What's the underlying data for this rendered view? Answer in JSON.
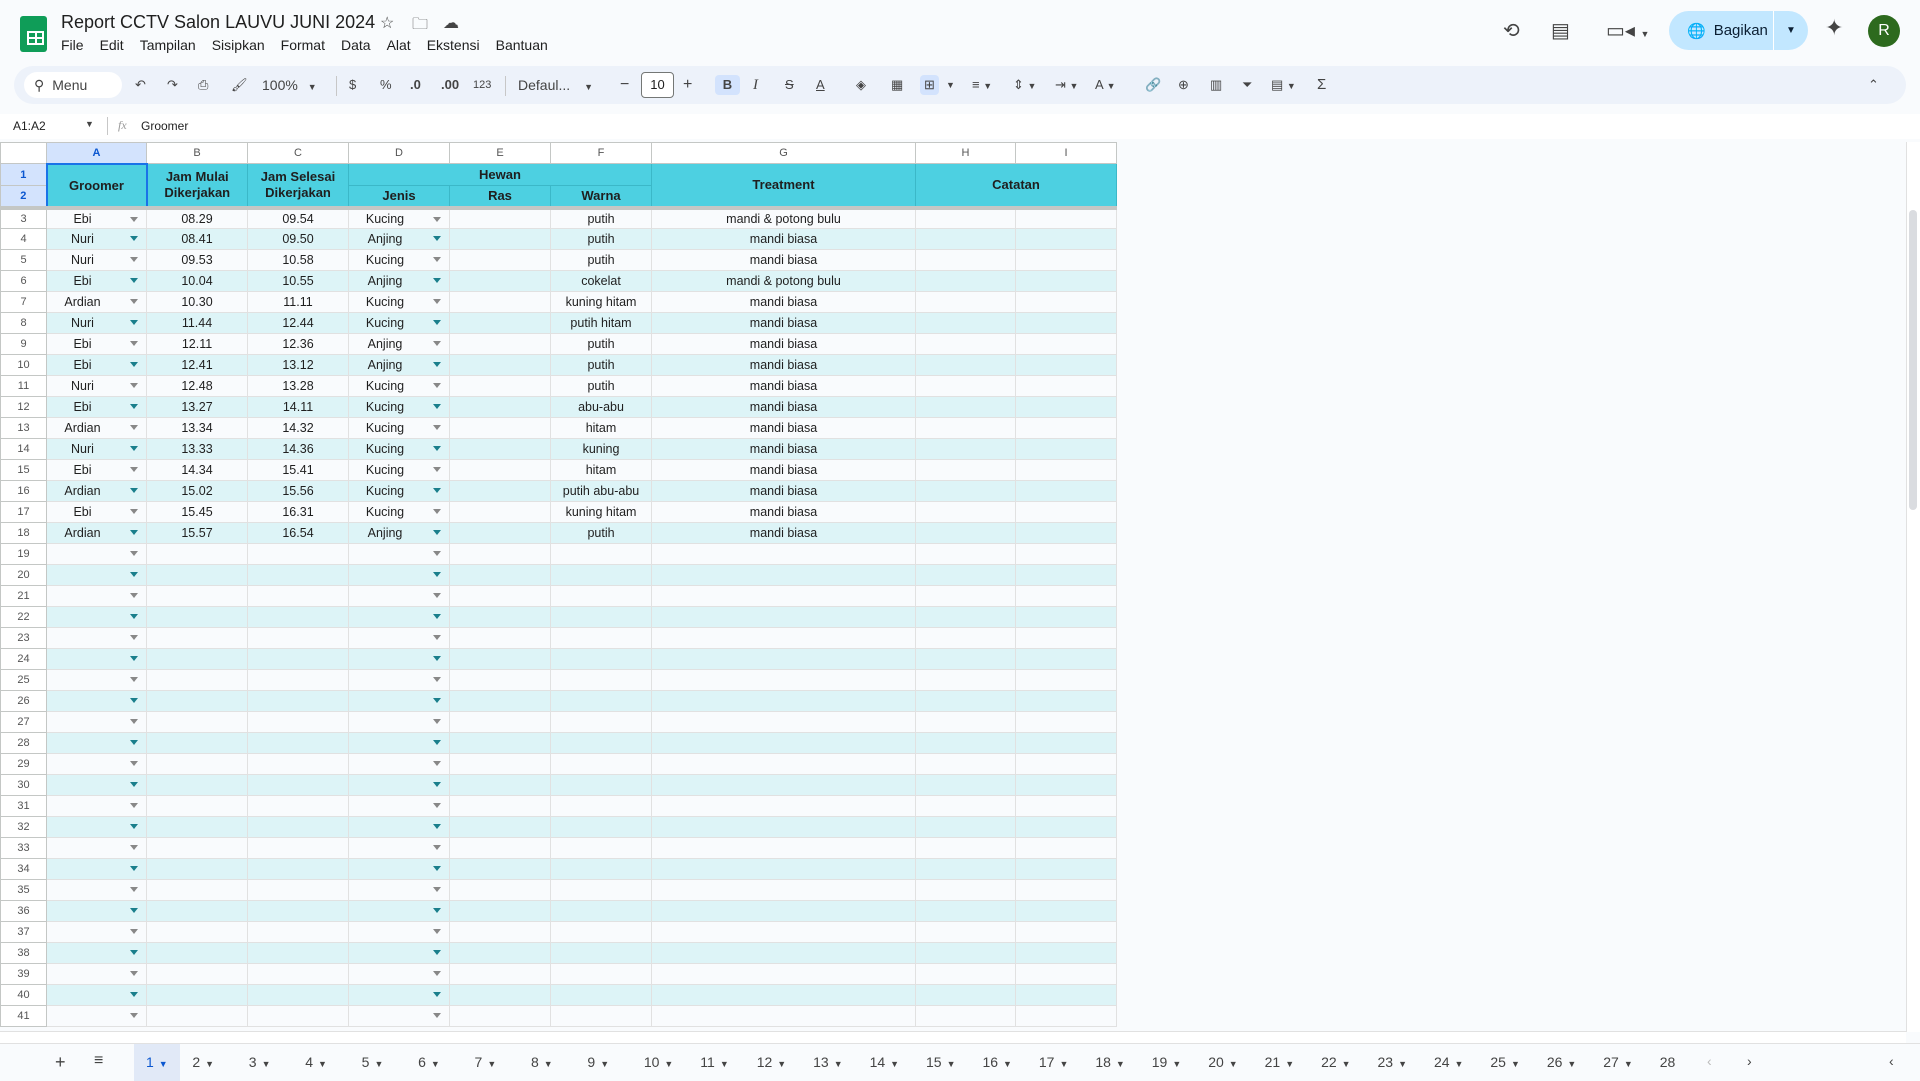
{
  "app": {
    "title": "Report CCTV Salon LAUVU JUNI 2024",
    "menu": [
      "File",
      "Edit",
      "Tampilan",
      "Sisipkan",
      "Format",
      "Data",
      "Alat",
      "Ekstensi",
      "Bantuan"
    ],
    "share_label": "Bagikan",
    "avatar_initial": "R"
  },
  "toolbar": {
    "search_label": "Menu",
    "zoom": "100%",
    "currency": "$",
    "percent": "%",
    "dec_decrease": ".0",
    "dec_increase": ".00",
    "number_format": "123",
    "font": "Defaul...",
    "font_size": "10",
    "bold": "B",
    "italic": "I",
    "strike": "S",
    "text_color": "A"
  },
  "formula_bar": {
    "range": "A1:A2",
    "fx": "fx",
    "value": "Groomer"
  },
  "columns": [
    "A",
    "B",
    "C",
    "D",
    "E",
    "F",
    "G",
    "H",
    "I"
  ],
  "header": {
    "groomer": "Groomer",
    "jam_mulai": "Jam Mulai Dikerjakan",
    "jam_selesai": "Jam Selesai Dikerjakan",
    "hewan": "Hewan",
    "jenis": "Jenis",
    "ras": "Ras",
    "warna": "Warna",
    "treatment": "Treatment",
    "catatan": "Catatan"
  },
  "rows": [
    [
      "Ebi",
      "08.29",
      "09.54",
      "Kucing",
      "",
      "putih",
      "mandi & potong bulu"
    ],
    [
      "Nuri",
      "08.41",
      "09.50",
      "Anjing",
      "",
      "putih",
      "mandi biasa"
    ],
    [
      "Nuri",
      "09.53",
      "10.58",
      "Kucing",
      "",
      "putih",
      "mandi biasa"
    ],
    [
      "Ebi",
      "10.04",
      "10.55",
      "Anjing",
      "",
      "cokelat",
      "mandi & potong bulu"
    ],
    [
      "Ardian",
      "10.30",
      "11.11",
      "Kucing",
      "",
      "kuning hitam",
      "mandi biasa"
    ],
    [
      "Nuri",
      "11.44",
      "12.44",
      "Kucing",
      "",
      "putih hitam",
      "mandi biasa"
    ],
    [
      "Ebi",
      "12.11",
      "12.36",
      "Anjing",
      "",
      "putih",
      "mandi biasa"
    ],
    [
      "Ebi",
      "12.41",
      "13.12",
      "Anjing",
      "",
      "putih",
      "mandi biasa"
    ],
    [
      "Nuri",
      "12.48",
      "13.28",
      "Kucing",
      "",
      "putih",
      "mandi biasa"
    ],
    [
      "Ebi",
      "13.27",
      "14.11",
      "Kucing",
      "",
      "abu-abu",
      "mandi biasa"
    ],
    [
      "Ardian",
      "13.34",
      "14.32",
      "Kucing",
      "",
      "hitam",
      "mandi biasa"
    ],
    [
      "Nuri",
      "13.33",
      "14.36",
      "Kucing",
      "",
      "kuning",
      "mandi biasa"
    ],
    [
      "Ebi",
      "14.34",
      "15.41",
      "Kucing",
      "",
      "hitam",
      "mandi biasa"
    ],
    [
      "Ardian",
      "15.02",
      "15.56",
      "Kucing",
      "",
      "putih abu-abu",
      "mandi biasa"
    ],
    [
      "Ebi",
      "15.45",
      "16.31",
      "Kucing",
      "",
      "kuning hitam",
      "mandi biasa"
    ],
    [
      "Ardian",
      "15.57",
      "16.54",
      "Anjing",
      "",
      "putih",
      "mandi biasa"
    ]
  ],
  "last_row": 41,
  "sheets": [
    "1",
    "2",
    "3",
    "4",
    "5",
    "6",
    "7",
    "8",
    "9",
    "10",
    "11",
    "12",
    "13",
    "14",
    "15",
    "16",
    "17",
    "18",
    "19",
    "20",
    "21",
    "22",
    "23",
    "24",
    "25",
    "26",
    "27",
    "28"
  ],
  "active_sheet": "1",
  "colors": {
    "header": "#4dd0e1",
    "band": "#ddf4f7",
    "accent": "#0b57d0"
  }
}
